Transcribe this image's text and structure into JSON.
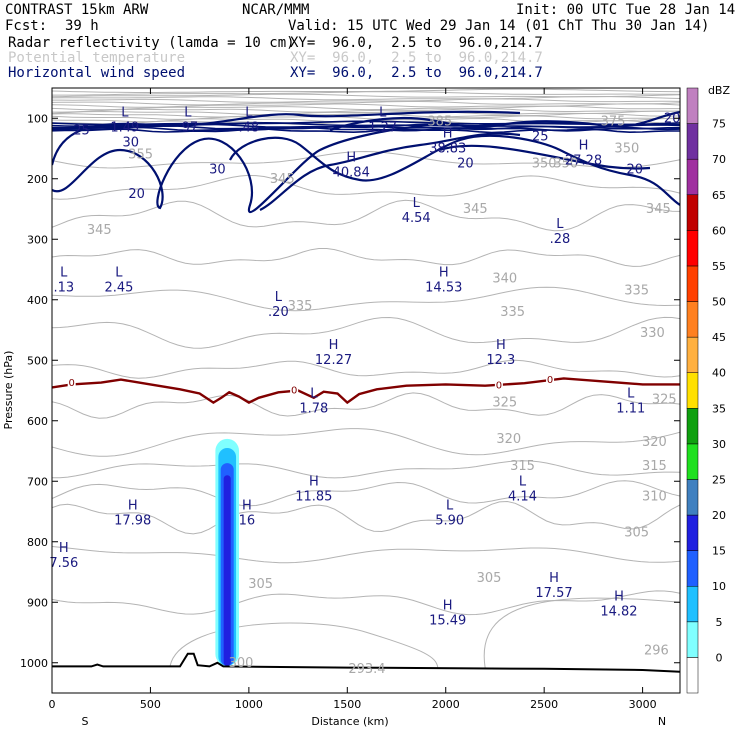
{
  "header": {
    "model": "CONTRAST 15km ARW",
    "center": "NCAR/MMM",
    "init": "Init: 00 UTC Tue 28 Jan 14",
    "fcst_label": "Fcst:",
    "fcst_value": "39 h",
    "valid": "Valid: 15 UTC Wed 29 Jan 14 (01 ChT Thu 30 Jan 14)"
  },
  "fields": [
    {
      "name": "Radar reflectivity (lamda = 10 cm)",
      "xy": "XY=  96.0,  2.5 to  96.0,214.7"
    },
    {
      "name": "Potential temperature",
      "xy": "XY=  96.0,  2.5 to  96.0,214.7"
    },
    {
      "name": "Horizontal wind speed",
      "xy": "XY=  96.0,  2.5 to  96.0,214.7"
    }
  ],
  "chart_data": {
    "type": "cross-section",
    "title": "Radar reflectivity, potential temperature and horizontal wind speed cross section",
    "xlabel": "Distance (km)",
    "ylabel": "Pressure (hPa)",
    "x_ticks": [
      0,
      500,
      1000,
      1500,
      2000,
      2500,
      3000
    ],
    "xlim": [
      0,
      3190
    ],
    "y_ticks": [
      100,
      200,
      300,
      400,
      500,
      600,
      700,
      800,
      900,
      1000
    ],
    "ylim": [
      1050,
      50
    ],
    "x_end_labels": {
      "left": "S",
      "right": "N"
    },
    "colorbar": {
      "unit": "dBZ",
      "levels": [
        0,
        5,
        10,
        15,
        20,
        25,
        30,
        35,
        40,
        45,
        50,
        55,
        60,
        65,
        70,
        75
      ],
      "colors": [
        "#ffffff",
        "#80ffff",
        "#20c0ff",
        "#2060ff",
        "#2020e0",
        "#4080c0",
        "#20e020",
        "#10a010",
        "#ffe000",
        "#ffb040",
        "#ff8020",
        "#ff4000",
        "#ff0000",
        "#c00000",
        "#a030a0",
        "#7030a0",
        "#c080c0"
      ]
    },
    "theta_labels": [
      {
        "v": "385",
        "x": 1970,
        "p": 105
      },
      {
        "v": "375",
        "x": 2850,
        "p": 105
      },
      {
        "v": "355",
        "x": 450,
        "p": 160
      },
      {
        "v": "350",
        "x": 2610,
        "p": 175
      },
      {
        "v": "350",
        "x": 2920,
        "p": 150
      },
      {
        "v": "350",
        "x": 2500,
        "p": 175
      },
      {
        "v": "345",
        "x": 1170,
        "p": 200
      },
      {
        "v": "345",
        "x": 2150,
        "p": 250
      },
      {
        "v": "345",
        "x": 3080,
        "p": 250
      },
      {
        "v": "345",
        "x": 240,
        "p": 285
      },
      {
        "v": "340",
        "x": 2300,
        "p": 365
      },
      {
        "v": "335",
        "x": 1260,
        "p": 410
      },
      {
        "v": "335",
        "x": 2970,
        "p": 385
      },
      {
        "v": "335",
        "x": 2340,
        "p": 420
      },
      {
        "v": "330",
        "x": 3050,
        "p": 455
      },
      {
        "v": "325",
        "x": 2300,
        "p": 570
      },
      {
        "v": "325",
        "x": 3110,
        "p": 565
      },
      {
        "v": "320",
        "x": 2320,
        "p": 630
      },
      {
        "v": "320",
        "x": 3060,
        "p": 635
      },
      {
        "v": "315",
        "x": 2390,
        "p": 675
      },
      {
        "v": "315",
        "x": 3060,
        "p": 675
      },
      {
        "v": "310",
        "x": 3060,
        "p": 725
      },
      {
        "v": "305",
        "x": 1060,
        "p": 870
      },
      {
        "v": "305",
        "x": 2220,
        "p": 860
      },
      {
        "v": "305",
        "x": 2970,
        "p": 785
      },
      {
        "v": "300",
        "x": 960,
        "p": 1000
      },
      {
        "v": "296",
        "x": 3070,
        "p": 980
      },
      {
        "v": "293.4",
        "x": 1600,
        "p": 1010
      }
    ],
    "wind_labels": [
      {
        "v": "25",
        "x": 150,
        "p": 120
      },
      {
        "v": "30",
        "x": 400,
        "p": 140
      },
      {
        "v": "20",
        "x": 430,
        "p": 225
      },
      {
        "v": "30",
        "x": 840,
        "p": 185
      },
      {
        "v": "20",
        "x": 2100,
        "p": 175
      },
      {
        "v": "25",
        "x": 2480,
        "p": 130
      },
      {
        "v": "20",
        "x": 2960,
        "p": 185
      },
      {
        "v": "20",
        "x": 3150,
        "p": 100
      }
    ],
    "extrema": [
      {
        "t": "L",
        "v": "1.49",
        "x": 370,
        "p": 100
      },
      {
        "t": "L",
        "v": ".97",
        "x": 690,
        "p": 100
      },
      {
        "t": "L",
        "v": ".48",
        "x": 1000,
        "p": 100
      },
      {
        "t": "L",
        "v": "1.27",
        "x": 1680,
        "p": 100
      },
      {
        "t": "H",
        "v": "38.83",
        "x": 2010,
        "p": 135
      },
      {
        "t": "H",
        "v": "40.84",
        "x": 1520,
        "p": 175
      },
      {
        "t": "H",
        "v": "27.28",
        "x": 2700,
        "p": 155
      },
      {
        "t": "L",
        "v": "4.54",
        "x": 1850,
        "p": 250
      },
      {
        "t": "L",
        "v": ".28",
        "x": 2580,
        "p": 285
      },
      {
        "t": "L",
        "v": "2.45",
        "x": 340,
        "p": 365
      },
      {
        "t": "L",
        "v": ".13",
        "x": 60,
        "p": 365
      },
      {
        "t": "H",
        "v": "14.53",
        "x": 1990,
        "p": 365
      },
      {
        "t": "L",
        "v": ".20",
        "x": 1150,
        "p": 405
      },
      {
        "t": "H",
        "v": "12.27",
        "x": 1430,
        "p": 485
      },
      {
        "t": "H",
        "v": "12.3",
        "x": 2280,
        "p": 485
      },
      {
        "t": "L",
        "v": "1.78",
        "x": 1330,
        "p": 565
      },
      {
        "t": "L",
        "v": "1.11",
        "x": 2940,
        "p": 565
      },
      {
        "t": "H",
        "v": "11.85",
        "x": 1330,
        "p": 710
      },
      {
        "t": "L",
        "v": "4.14",
        "x": 2390,
        "p": 710
      },
      {
        "t": "H",
        "v": "17.98",
        "x": 410,
        "p": 750
      },
      {
        "t": "H",
        "v": "16",
        "x": 990,
        "p": 750
      },
      {
        "t": "L",
        "v": "5.90",
        "x": 2020,
        "p": 750
      },
      {
        "t": "H",
        "v": "7.56",
        "x": 60,
        "p": 820
      },
      {
        "t": "H",
        "v": "17.57",
        "x": 2550,
        "p": 870
      },
      {
        "t": "H",
        "v": "15.49",
        "x": 2010,
        "p": 915
      },
      {
        "t": "H",
        "v": "14.82",
        "x": 2880,
        "p": 900
      }
    ],
    "zero_labels": [
      {
        "v": "0",
        "x": 100,
        "p": 538
      },
      {
        "v": "0",
        "x": 1230,
        "p": 550
      },
      {
        "v": "0",
        "x": 2270,
        "p": 542
      },
      {
        "v": "0",
        "x": 2530,
        "p": 533
      }
    ],
    "freezing_level": [
      [
        0,
        545
      ],
      [
        100,
        540
      ],
      [
        250,
        537
      ],
      [
        350,
        532
      ],
      [
        500,
        540
      ],
      [
        650,
        548
      ],
      [
        750,
        555
      ],
      [
        820,
        570
      ],
      [
        860,
        562
      ],
      [
        900,
        553
      ],
      [
        950,
        560
      ],
      [
        1000,
        570
      ],
      [
        1050,
        562
      ],
      [
        1150,
        553
      ],
      [
        1250,
        550
      ],
      [
        1330,
        562
      ],
      [
        1380,
        552
      ],
      [
        1450,
        555
      ],
      [
        1500,
        570
      ],
      [
        1560,
        556
      ],
      [
        1650,
        548
      ],
      [
        1800,
        542
      ],
      [
        2000,
        540
      ],
      [
        2200,
        542
      ],
      [
        2400,
        538
      ],
      [
        2600,
        530
      ],
      [
        2800,
        535
      ],
      [
        3000,
        540
      ],
      [
        3190,
        540
      ]
    ],
    "terrain": [
      [
        0,
        1006
      ],
      [
        200,
        1006
      ],
      [
        230,
        1003
      ],
      [
        260,
        1006
      ],
      [
        650,
        1006
      ],
      [
        690,
        985
      ],
      [
        720,
        985
      ],
      [
        740,
        1004
      ],
      [
        800,
        1006
      ],
      [
        840,
        1000
      ],
      [
        870,
        1006
      ],
      [
        1500,
        1008
      ],
      [
        2500,
        1010
      ],
      [
        3000,
        1012
      ],
      [
        3190,
        1015
      ]
    ],
    "reflectivity_core": {
      "x_range": [
        830,
        950
      ],
      "p_top": 630,
      "p_bottom": 1005,
      "max_dbz": 20
    }
  }
}
